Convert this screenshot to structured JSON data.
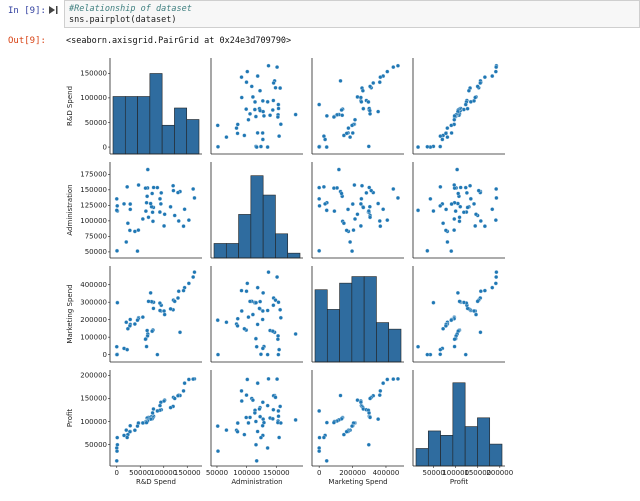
{
  "cell_input": {
    "prompt": "In [9]:",
    "code_lines": [
      "#Relationship of dataset",
      "sns.pairplot(dataset)"
    ]
  },
  "cell_output": {
    "prompt": "Out[9]:",
    "text": "<seaborn.axisgrid.PairGrid at 0x24e3d709790>"
  },
  "colors": {
    "point": "#1f77b4",
    "bar_fill": "#2f6c9f",
    "prompt_in": "#303f9f",
    "prompt_out": "#d84315"
  },
  "chart_data": {
    "type": "scatter",
    "variables": [
      "R&D Spend",
      "Administration",
      "Marketing Spend",
      "Profit"
    ],
    "x_ticks": [
      [
        "0",
        "50000",
        "100000",
        "150000"
      ],
      [
        "50000",
        "100000",
        "150000"
      ],
      [
        "0",
        "200000",
        "400000"
      ],
      [
        "50000",
        "100000",
        "150000",
        "200000"
      ]
    ],
    "y_ticks": [
      [
        "0",
        "50000",
        "100000",
        "150000"
      ],
      [
        "50000",
        "75000",
        "100000",
        "125000",
        "150000",
        "175000"
      ],
      [
        "0",
        "100000",
        "200000",
        "300000",
        "400000"
      ],
      [
        "50000",
        "100000",
        "150000",
        "200000"
      ]
    ],
    "ranges": [
      [
        -8000,
        175000
      ],
      [
        45000,
        190000
      ],
      [
        -25000,
        490000
      ],
      [
        10000,
        205000
      ]
    ],
    "tick_values": {
      "x": [
        [
          0,
          50000,
          100000,
          150000
        ],
        [
          50000,
          100000,
          150000
        ],
        [
          0,
          200000,
          400000
        ],
        [
          50000,
          100000,
          150000,
          200000
        ]
      ],
      "y": [
        [
          0,
          50000,
          100000,
          150000
        ],
        [
          50000,
          75000,
          100000,
          125000,
          150000,
          175000
        ],
        [
          0,
          100000,
          200000,
          300000,
          400000
        ],
        [
          50000,
          100000,
          150000,
          200000
        ]
      ]
    },
    "data": {
      "rd": [
        165349,
        162598,
        153442,
        144372,
        142107,
        131877,
        134615,
        130298,
        120543,
        123335,
        101913,
        100672,
        93864,
        91992,
        119943,
        114524,
        78014,
        94657,
        91749,
        86420,
        76254,
        78389,
        73995,
        67533,
        77044,
        64665,
        75329,
        72108,
        66052,
        65606,
        61995,
        61137,
        63409,
        55494,
        46426,
        46014,
        28664,
        44070,
        20230,
        38559,
        28754,
        27893,
        23641,
        15506,
        22178,
        1001,
        1315,
        0,
        543,
        0
      ],
      "admin": [
        136898,
        151378,
        101146,
        118672,
        91392,
        99815,
        147199,
        145530,
        148719,
        108679,
        110594,
        91791,
        127320,
        135495,
        156547,
        122617,
        121598,
        145078,
        114176,
        153514,
        113867,
        153773,
        122783,
        105751,
        99281,
        139553,
        144136,
        127865,
        182646,
        153032,
        115641,
        152702,
        129220,
        103057,
        157694,
        85047,
        127056,
        51283,
        65948,
        82983,
        118546,
        84711,
        96189,
        127382,
        154806,
        124153,
        115816,
        135427,
        51743,
        116984
      ],
      "mkt": [
        471784,
        443899,
        407935,
        383200,
        366168,
        362861,
        127717,
        323877,
        311613,
        304982,
        229161,
        249745,
        249839,
        252665,
        256513,
        261776,
        264346,
        282574,
        294920,
        0,
        298664,
        299737,
        303319,
        304769,
        140575,
        137962,
        134051,
        353184,
        118148,
        107138,
        91131,
        88219,
        46085,
        214635,
        210798,
        205517,
        201127,
        197029,
        185265,
        174999,
        172795,
        164471,
        148001,
        35534,
        28334,
        1904,
        297114,
        0,
        0,
        45173
      ],
      "profit": [
        192261,
        191792,
        191050,
        182902,
        166188,
        156991,
        156123,
        155753,
        152212,
        149760,
        146122,
        144259,
        141586,
        134307,
        132603,
        129917,
        126993,
        125370,
        124267,
        122777,
        118474,
        111313,
        110352,
        108734,
        108552,
        107404,
        105734,
        105008,
        103282,
        101004,
        99938,
        97484,
        97427,
        96779,
        96712,
        96479,
        90708,
        89949,
        81230,
        81005,
        78240,
        77798,
        71498,
        69759,
        65200,
        64927,
        49491,
        42560,
        35673,
        14681
      ]
    },
    "histograms": [
      [
        10,
        10,
        10,
        14,
        5,
        8,
        6
      ],
      [
        3,
        3,
        9,
        17,
        13,
        5,
        1
      ],
      [
        11,
        8,
        12,
        13,
        13,
        6,
        5
      ],
      [
        4,
        8,
        7,
        19,
        9,
        11,
        5
      ]
    ],
    "hist_counts_max": [
      16,
      19,
      14,
      21
    ]
  }
}
